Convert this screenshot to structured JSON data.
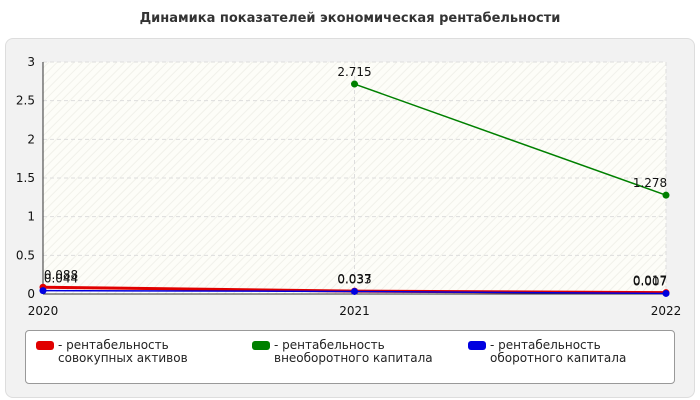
{
  "chart_data": {
    "type": "line",
    "title": "Динамика показателей экономическая рентабельности",
    "categories": [
      "2020",
      "2021",
      "2022"
    ],
    "series": [
      {
        "name": "- рентабельность совокупных активов",
        "color": "#e00000",
        "values": [
          0.088,
          0.037,
          0.017
        ]
      },
      {
        "name": "- рентабельность внеоборотного капитала",
        "color": "#008000",
        "values": [
          null,
          2.715,
          1.278
        ]
      },
      {
        "name": "- рентабельность оборотного капитала",
        "color": "#0000e0",
        "values": [
          0.044,
          0.033,
          0.007
        ]
      }
    ],
    "ylim": [
      0,
      3
    ],
    "yticks": [
      0,
      0.5,
      1,
      1.5,
      2,
      2.5,
      3
    ],
    "grid": true
  }
}
